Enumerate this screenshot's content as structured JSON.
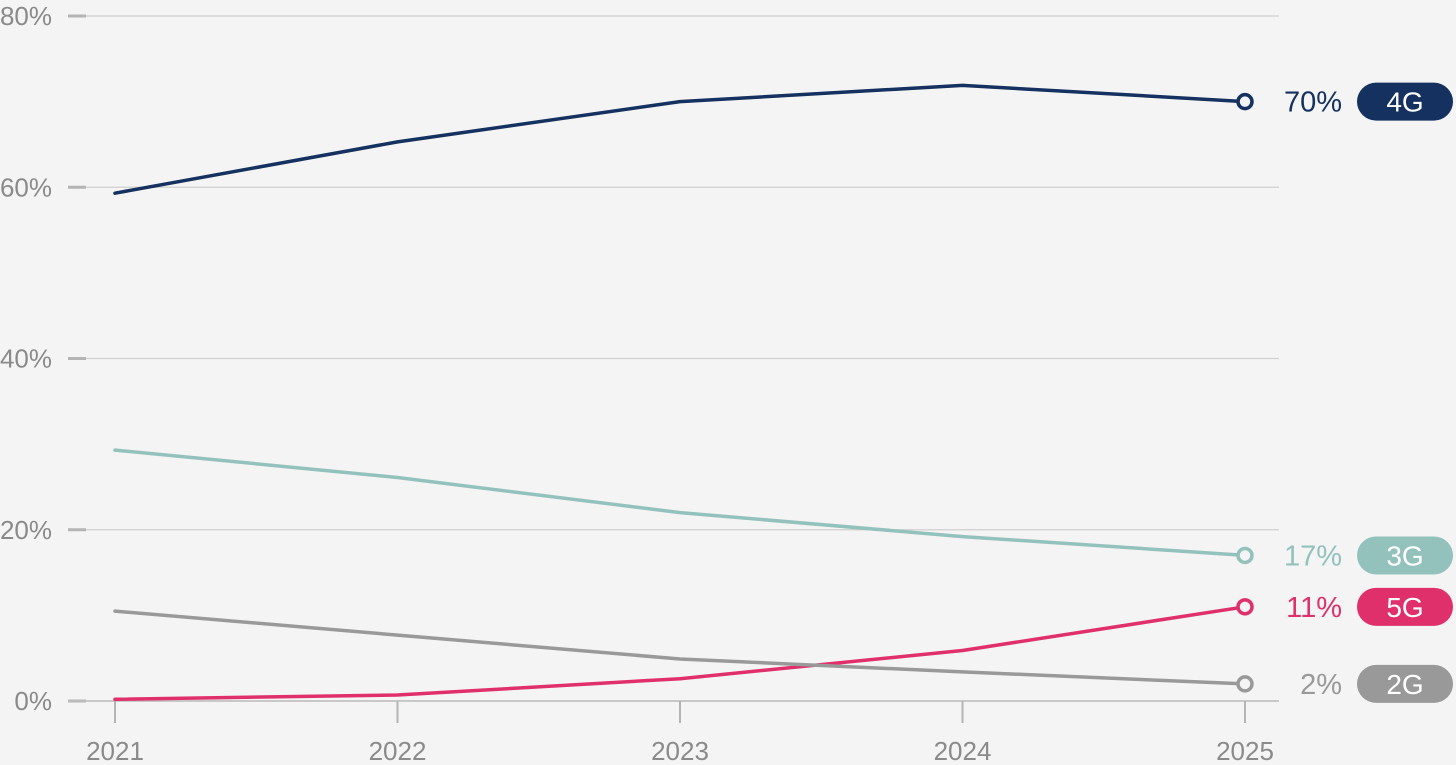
{
  "chart_data": {
    "type": "line",
    "x": [
      "2021",
      "2022",
      "2023",
      "2024",
      "2025"
    ],
    "ylim": [
      0,
      80
    ],
    "y_ticks": [
      0,
      20,
      40,
      60,
      80
    ],
    "y_tick_labels": [
      "0%",
      "20%",
      "40%",
      "60%",
      "80%"
    ],
    "grid": true,
    "legend": "right, labels at line ends",
    "series": [
      {
        "name": "4G",
        "values": [
          59.3,
          65.3,
          70.0,
          71.9,
          70.0
        ],
        "end_label": "70%",
        "color": "#14315f"
      },
      {
        "name": "3G",
        "values": [
          29.3,
          26.1,
          22.0,
          19.2,
          17.0
        ],
        "end_label": "17%",
        "color": "#93c2bd"
      },
      {
        "name": "5G",
        "values": [
          0.2,
          0.7,
          2.6,
          5.9,
          11.0
        ],
        "end_label": "11%",
        "color": "#e0306b"
      },
      {
        "name": "2G",
        "values": [
          10.5,
          7.7,
          4.9,
          3.4,
          2.0
        ],
        "end_label": "2%",
        "color": "#999999"
      }
    ]
  }
}
